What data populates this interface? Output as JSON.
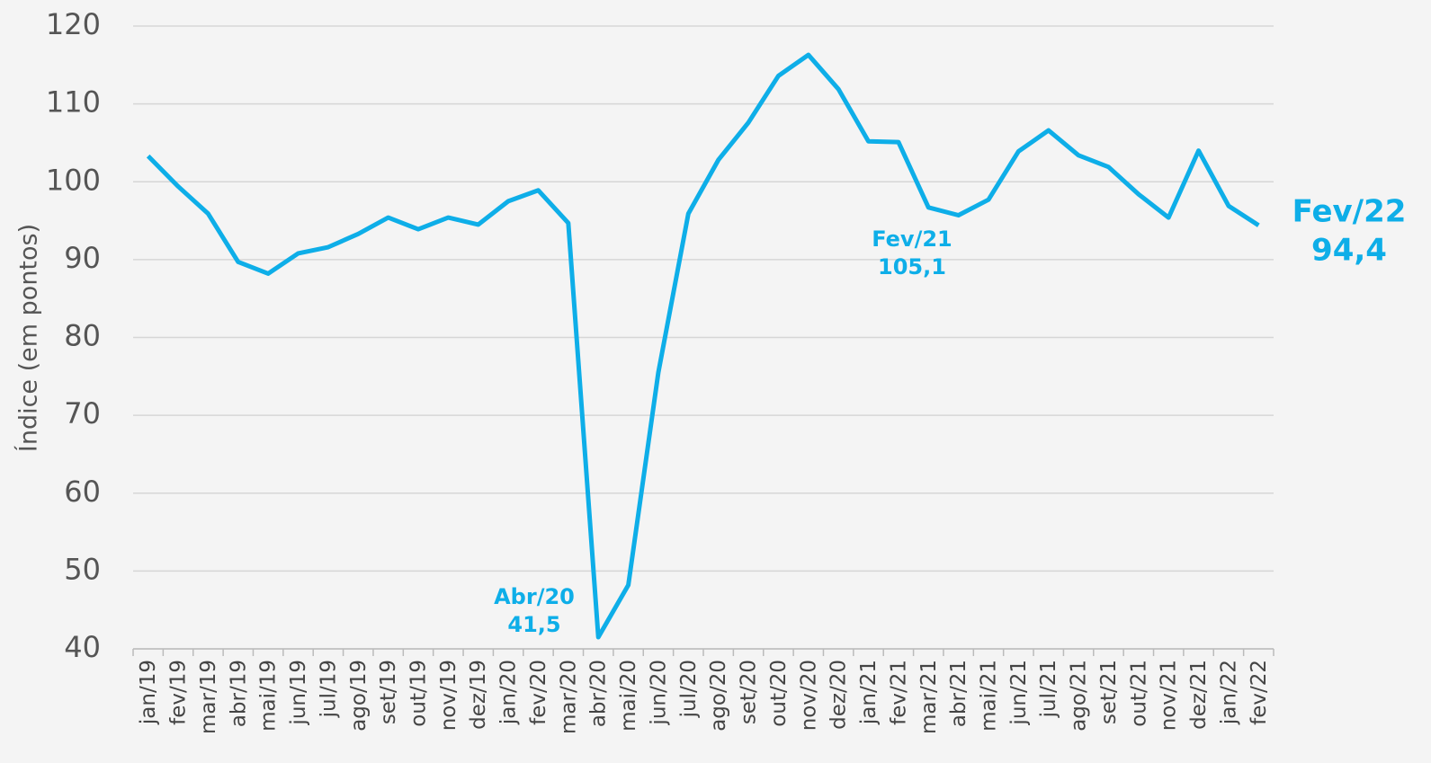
{
  "chart_data": {
    "type": "line",
    "y_label": "Índice (em pontos)",
    "categories": [
      "jan/19",
      "fev/19",
      "mar/19",
      "abr/19",
      "mai/19",
      "jun/19",
      "jul/19",
      "ago/19",
      "set/19",
      "out/19",
      "nov/19",
      "dez/19",
      "jan/20",
      "fev/20",
      "mar/20",
      "abr/20",
      "mai/20",
      "jun/20",
      "jul/20",
      "ago/20",
      "set/20",
      "out/20",
      "nov/20",
      "dez/20",
      "jan/21",
      "fev/21",
      "mar/21",
      "abr/21",
      "mai/21",
      "jun/21",
      "jul/21",
      "ago/21",
      "set/21",
      "out/21",
      "nov/21",
      "dez/21",
      "jan/22",
      "fev/22"
    ],
    "series": [
      {
        "color": "#0eaee8",
        "values": [
          103.3,
          99.4,
          95.9,
          89.7,
          88.2,
          90.8,
          91.6,
          93.3,
          95.4,
          93.9,
          95.4,
          94.5,
          97.5,
          98.9,
          94.7,
          41.5,
          48.2,
          75.5,
          95.9,
          102.8,
          107.6,
          113.6,
          116.3,
          111.9,
          105.2,
          105.1,
          96.7,
          95.7,
          97.7,
          103.9,
          106.6,
          103.4,
          101.9,
          98.4,
          95.4,
          104.0,
          96.9,
          94.4
        ]
      }
    ],
    "ylim": [
      40,
      120
    ],
    "yticks": [
      40,
      50,
      60,
      70,
      80,
      90,
      100,
      110,
      120
    ],
    "grid": true,
    "annotations": [
      {
        "lines": [
          "Abr/20",
          "41,5"
        ]
      },
      {
        "lines": [
          "Fev/21",
          "105,1"
        ]
      },
      {
        "lines": [
          "Fev/22",
          "94,4"
        ]
      }
    ]
  }
}
